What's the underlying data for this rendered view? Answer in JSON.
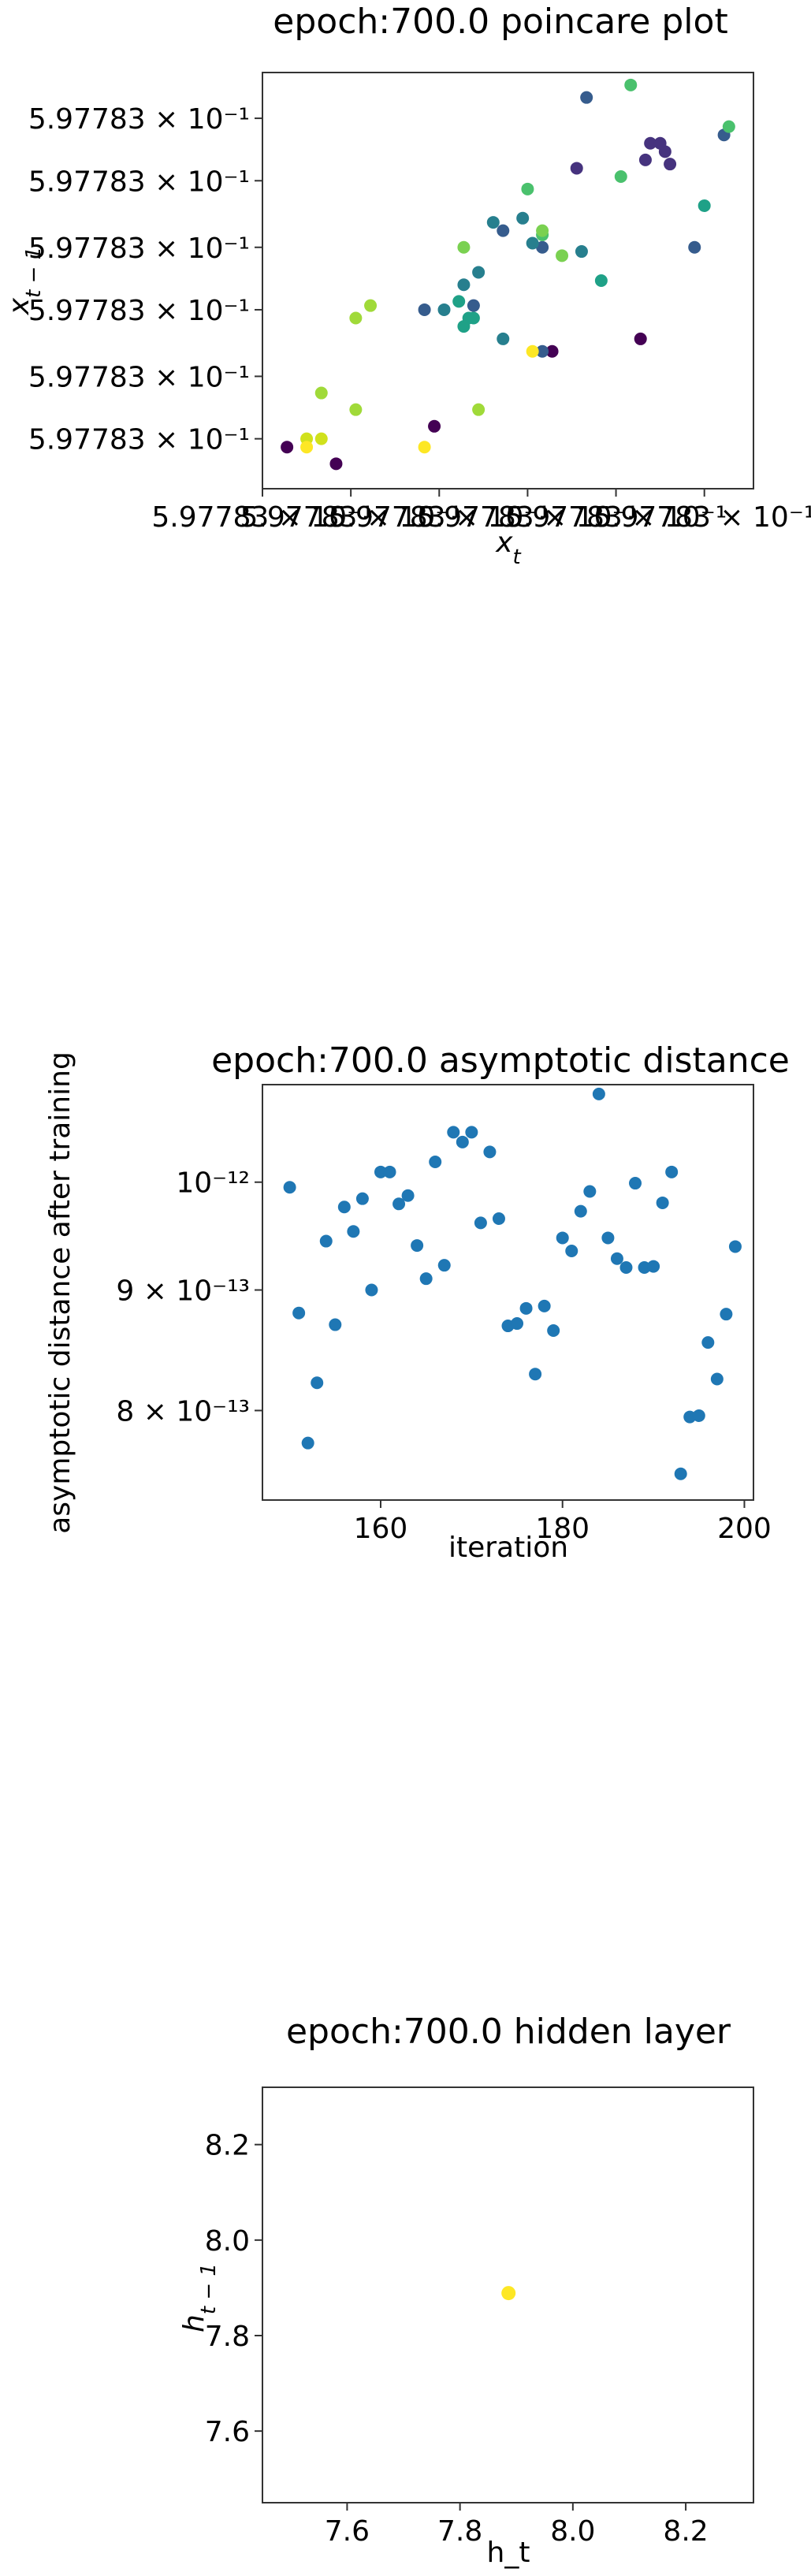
{
  "chart_data": [
    {
      "type": "scatter",
      "title": "epoch:700.0 poincare plot",
      "xlabel_main": "x",
      "xlabel_sub": "t",
      "ylabel_main": "x",
      "ylabel_sub": "t − 1",
      "xlim": [
        0,
        1
      ],
      "ylim": [
        0,
        1
      ],
      "yticks": [
        {
          "v": 0.12,
          "label": "5.97783 × 10⁻¹"
        },
        {
          "v": 0.27,
          "label": "5.97783 × 10⁻¹"
        },
        {
          "v": 0.43,
          "label": "5.97783 × 10⁻¹"
        },
        {
          "v": 0.58,
          "label": "5.97783 × 10⁻¹"
        },
        {
          "v": 0.74,
          "label": "5.97783 × 10⁻¹"
        },
        {
          "v": 0.89,
          "label": "5.97783 × 10⁻¹"
        }
      ],
      "xticks": [
        {
          "v": 0.0,
          "label": "5.97783 × 10⁻¹"
        },
        {
          "v": 0.18,
          "label": "5.97783 × 10⁻¹"
        },
        {
          "v": 0.36,
          "label": "5.97783 × 10⁻¹"
        },
        {
          "v": 0.54,
          "label": "5.97783 × 10⁻¹"
        },
        {
          "v": 0.72,
          "label": "5.97783 × 10⁻¹"
        },
        {
          "v": 0.9,
          "label": "5.97783 × 10⁻¹"
        }
      ],
      "points": [
        {
          "x": 0.05,
          "y": 0.1,
          "c": "#440154"
        },
        {
          "x": 0.15,
          "y": 0.06,
          "c": "#440154"
        },
        {
          "x": 0.35,
          "y": 0.15,
          "c": "#440154"
        },
        {
          "x": 0.59,
          "y": 0.33,
          "c": "#440154"
        },
        {
          "x": 0.77,
          "y": 0.36,
          "c": "#440154"
        },
        {
          "x": 0.64,
          "y": 0.77,
          "c": "#46337e"
        },
        {
          "x": 0.83,
          "y": 0.78,
          "c": "#46337e"
        },
        {
          "x": 0.82,
          "y": 0.81,
          "c": "#46337e"
        },
        {
          "x": 0.79,
          "y": 0.83,
          "c": "#46337e"
        },
        {
          "x": 0.81,
          "y": 0.83,
          "c": "#46337e"
        },
        {
          "x": 0.78,
          "y": 0.79,
          "c": "#46337e"
        },
        {
          "x": 0.66,
          "y": 0.94,
          "c": "#365c8d"
        },
        {
          "x": 0.94,
          "y": 0.85,
          "c": "#365c8d"
        },
        {
          "x": 0.88,
          "y": 0.58,
          "c": "#365c8d"
        },
        {
          "x": 0.49,
          "y": 0.62,
          "c": "#365c8d"
        },
        {
          "x": 0.57,
          "y": 0.58,
          "c": "#365c8d"
        },
        {
          "x": 0.43,
          "y": 0.44,
          "c": "#365c8d"
        },
        {
          "x": 0.33,
          "y": 0.43,
          "c": "#365c8d"
        },
        {
          "x": 0.57,
          "y": 0.33,
          "c": "#365c8d"
        },
        {
          "x": 0.47,
          "y": 0.64,
          "c": "#277f8e"
        },
        {
          "x": 0.53,
          "y": 0.65,
          "c": "#277f8e"
        },
        {
          "x": 0.55,
          "y": 0.59,
          "c": "#277f8e"
        },
        {
          "x": 0.65,
          "y": 0.57,
          "c": "#277f8e"
        },
        {
          "x": 0.44,
          "y": 0.52,
          "c": "#277f8e"
        },
        {
          "x": 0.41,
          "y": 0.49,
          "c": "#277f8e"
        },
        {
          "x": 0.37,
          "y": 0.43,
          "c": "#277f8e"
        },
        {
          "x": 0.49,
          "y": 0.36,
          "c": "#277f8e"
        },
        {
          "x": 0.4,
          "y": 0.45,
          "c": "#1fa187"
        },
        {
          "x": 0.42,
          "y": 0.41,
          "c": "#1fa187"
        },
        {
          "x": 0.43,
          "y": 0.41,
          "c": "#1fa187"
        },
        {
          "x": 0.41,
          "y": 0.39,
          "c": "#1fa187"
        },
        {
          "x": 0.69,
          "y": 0.5,
          "c": "#1fa187"
        },
        {
          "x": 0.9,
          "y": 0.68,
          "c": "#1fa187"
        },
        {
          "x": 0.75,
          "y": 0.97,
          "c": "#4ac16d"
        },
        {
          "x": 0.95,
          "y": 0.87,
          "c": "#4ac16d"
        },
        {
          "x": 0.73,
          "y": 0.75,
          "c": "#4ac16d"
        },
        {
          "x": 0.54,
          "y": 0.72,
          "c": "#4ac16d"
        },
        {
          "x": 0.57,
          "y": 0.61,
          "c": "#4ac16d"
        },
        {
          "x": 0.41,
          "y": 0.58,
          "c": "#7ad151"
        },
        {
          "x": 0.57,
          "y": 0.62,
          "c": "#7ad151"
        },
        {
          "x": 0.61,
          "y": 0.56,
          "c": "#7ad151"
        },
        {
          "x": 0.19,
          "y": 0.41,
          "c": "#a0da39"
        },
        {
          "x": 0.22,
          "y": 0.44,
          "c": "#a0da39"
        },
        {
          "x": 0.12,
          "y": 0.23,
          "c": "#a0da39"
        },
        {
          "x": 0.19,
          "y": 0.19,
          "c": "#a0da39"
        },
        {
          "x": 0.44,
          "y": 0.19,
          "c": "#a0da39"
        },
        {
          "x": 0.09,
          "y": 0.12,
          "c": "#d0e11c"
        },
        {
          "x": 0.12,
          "y": 0.12,
          "c": "#d0e11c"
        },
        {
          "x": 0.09,
          "y": 0.1,
          "c": "#fde725"
        },
        {
          "x": 0.33,
          "y": 0.1,
          "c": "#fde725"
        },
        {
          "x": 0.55,
          "y": 0.33,
          "c": "#fde725"
        }
      ]
    },
    {
      "type": "scatter",
      "title": "epoch:700.0 asymptotic distance",
      "xlabel": "iteration",
      "ylabel": "asymptotic distance after training",
      "xlim": [
        147,
        201
      ],
      "ylim": [
        7.33e-13,
        1.1e-12
      ],
      "yscale": "log",
      "xticks": [
        {
          "v": 160,
          "label": "160"
        },
        {
          "v": 180,
          "label": "180"
        },
        {
          "v": 200,
          "label": "200"
        }
      ],
      "yticks": [
        {
          "v": 8e-13,
          "label": "8 × 10⁻¹³"
        },
        {
          "v": 9e-13,
          "label": "9 × 10⁻¹³"
        },
        {
          "v": 1e-12,
          "label": "10⁻¹²"
        }
      ],
      "color": "#1f77b4",
      "x": [
        150,
        151,
        152,
        153,
        154,
        155,
        156,
        157,
        158,
        159,
        160,
        161,
        162,
        163,
        164,
        165,
        166,
        167,
        168,
        169,
        170,
        171,
        172,
        173,
        174,
        175,
        176,
        177,
        178,
        179,
        180,
        181,
        182,
        183,
        184,
        185,
        186,
        187,
        188,
        189,
        190,
        191,
        192,
        193,
        194,
        195,
        196,
        197,
        198,
        199
      ],
      "y": [
        9.95e-13,
        8.8e-13,
        7.75e-13,
        8.22e-13,
        9.44e-13,
        8.7e-13,
        9.76e-13,
        9.53e-13,
        9.84e-13,
        9e-13,
        1.01e-12,
        1.01e-12,
        9.79e-13,
        9.87e-13,
        9.4e-13,
        9.1e-13,
        1.02e-12,
        9.22e-13,
        1.05e-12,
        1.04e-12,
        1.05e-12,
        9.61e-13,
        1.03e-12,
        9.65e-13,
        8.69e-13,
        8.71e-13,
        8.84e-13,
        8.29e-13,
        8.86e-13,
        8.65e-13,
        9.47e-13,
        9.35e-13,
        9.72e-13,
        9.91e-13,
        1.09e-12,
        9.47e-13,
        9.28e-13,
        9.2e-13,
        9.99e-13,
        9.2e-13,
        9.21e-13,
        9.8e-13,
        1.01e-12,
        7.52e-13,
        7.95e-13,
        7.96e-13,
        8.55e-13,
        8.25e-13,
        8.79e-13,
        9.39e-13
      ]
    },
    {
      "type": "scatter",
      "title": "epoch:700.0 hidden layer",
      "xlabel": "h_t",
      "ylabel_main": "h",
      "ylabel_sub": "t − 1",
      "xlim": [
        7.45,
        8.32
      ],
      "ylim": [
        7.45,
        8.32
      ],
      "xticks": [
        {
          "v": 7.6,
          "label": "7.6"
        },
        {
          "v": 7.8,
          "label": "7.8"
        },
        {
          "v": 8.0,
          "label": "8.0"
        },
        {
          "v": 8.2,
          "label": "8.2"
        }
      ],
      "yticks": [
        {
          "v": 7.6,
          "label": "7.6"
        },
        {
          "v": 7.8,
          "label": "7.8"
        },
        {
          "v": 8.0,
          "label": "8.0"
        },
        {
          "v": 8.2,
          "label": "8.2"
        }
      ],
      "color": "#fde725",
      "x": [
        7.886
      ],
      "y": [
        7.889
      ]
    }
  ]
}
